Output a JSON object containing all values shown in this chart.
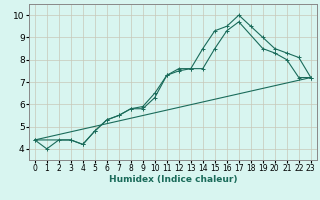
{
  "xlabel": "Humidex (Indice chaleur)",
  "bg_color": "#d8f5f0",
  "grid_color": "#c8c8b8",
  "line_color": "#1a6b5a",
  "xlim": [
    -0.5,
    23.5
  ],
  "ylim": [
    3.5,
    10.5
  ],
  "xticks": [
    0,
    1,
    2,
    3,
    4,
    5,
    6,
    7,
    8,
    9,
    10,
    11,
    12,
    13,
    14,
    15,
    16,
    17,
    18,
    19,
    20,
    21,
    22,
    23
  ],
  "yticks": [
    4,
    5,
    6,
    7,
    8,
    9,
    10
  ],
  "line1_x": [
    0,
    1,
    2,
    3,
    4,
    5,
    6,
    7,
    8,
    9,
    10,
    11,
    12,
    13,
    14,
    15,
    16,
    17,
    18,
    19,
    20,
    21,
    22,
    23
  ],
  "line1_y": [
    4.4,
    4.0,
    4.4,
    4.4,
    4.2,
    4.8,
    5.3,
    5.5,
    5.8,
    5.8,
    6.3,
    7.3,
    7.5,
    7.6,
    8.5,
    9.3,
    9.5,
    10.0,
    9.5,
    9.0,
    8.5,
    8.3,
    8.1,
    7.2
  ],
  "line2_x": [
    0,
    3,
    4,
    5,
    6,
    7,
    8,
    9,
    10,
    11,
    12,
    13,
    14,
    15,
    16,
    17,
    19,
    20,
    21,
    22,
    23
  ],
  "line2_y": [
    4.4,
    4.4,
    4.2,
    4.8,
    5.3,
    5.5,
    5.8,
    5.9,
    6.5,
    7.3,
    7.6,
    7.6,
    7.6,
    8.5,
    9.3,
    9.7,
    8.5,
    8.3,
    8.0,
    7.2,
    7.2
  ],
  "line3_x": [
    0,
    23
  ],
  "line3_y": [
    4.4,
    7.2
  ],
  "tick_fontsize": 5.5,
  "xlabel_fontsize": 6.5
}
